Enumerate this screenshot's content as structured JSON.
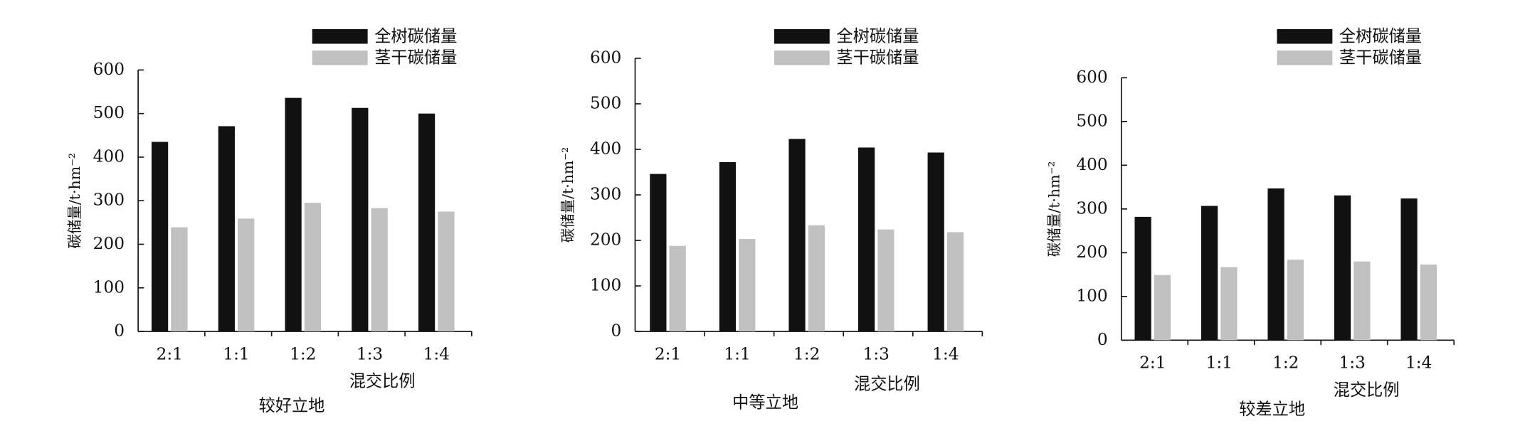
{
  "chart_data": [
    {
      "type": "bar",
      "title": "较好立地",
      "x_label": "混交比例",
      "y_label": "碳储量/t·hm⁻²",
      "categories": [
        "2:1",
        "1:1",
        "1:2",
        "1:3",
        "1:4"
      ],
      "series": [
        {
          "name": "全树碳储量",
          "color": "#111111",
          "values": [
            435,
            471,
            536,
            513,
            500
          ]
        },
        {
          "name": "茎干碳储量",
          "color": "#c0c0c0",
          "values": [
            239,
            259,
            295,
            283,
            275
          ]
        }
      ],
      "ylim": [
        0,
        600
      ],
      "yticks": [
        0,
        100,
        200,
        300,
        400,
        500,
        600
      ]
    },
    {
      "type": "bar",
      "title": "中等立地",
      "x_label": "混交比例",
      "y_label": "碳储量/t·hm⁻²",
      "categories": [
        "2:1",
        "1:1",
        "1:2",
        "1:3",
        "1:4"
      ],
      "series": [
        {
          "name": "全树碳储量",
          "color": "#111111",
          "values": [
            346,
            372,
            423,
            404,
            393
          ]
        },
        {
          "name": "茎干碳储量",
          "color": "#c0c0c0",
          "values": [
            188,
            203,
            233,
            224,
            218
          ]
        }
      ],
      "ylim": [
        0,
        600
      ],
      "yticks": [
        0,
        100,
        200,
        300,
        400,
        500,
        600
      ]
    },
    {
      "type": "bar",
      "title": "较差立地",
      "x_label": "混交比例",
      "y_label": "碳储量/t·hm⁻²",
      "categories": [
        "2:1",
        "1:1",
        "1:2",
        "1:3",
        "1:4"
      ],
      "series": [
        {
          "name": "全树碳储量",
          "color": "#111111",
          "values": [
            282,
            307,
            347,
            331,
            324
          ]
        },
        {
          "name": "茎干碳储量",
          "color": "#c0c0c0",
          "values": [
            149,
            167,
            184,
            180,
            173
          ]
        }
      ],
      "ylim": [
        0,
        600
      ],
      "yticks": [
        0,
        100,
        200,
        300,
        400,
        500,
        600
      ]
    }
  ]
}
